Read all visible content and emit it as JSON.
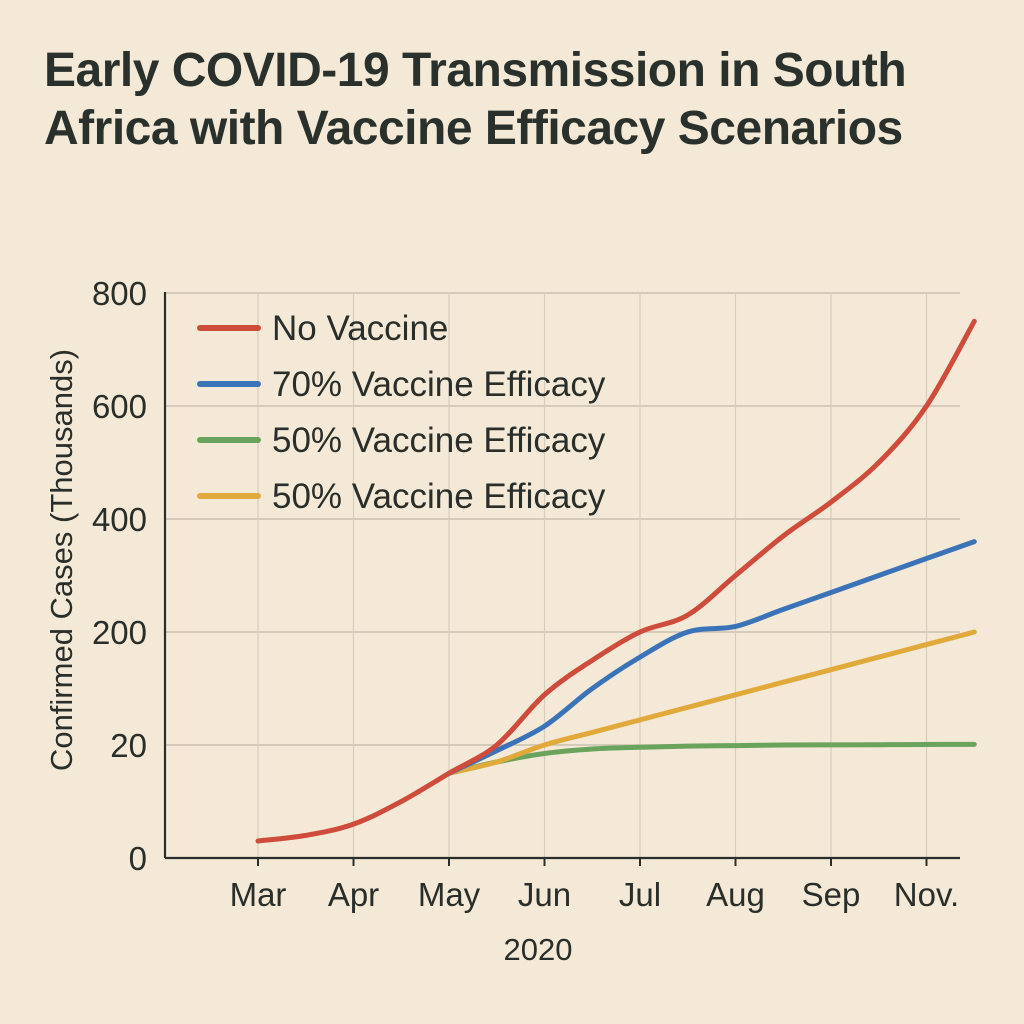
{
  "chart_data": {
    "type": "line",
    "title": "Early COVID-19 Transmission in South Africa with Vaccine Efficacy Scenarios",
    "xlabel": "2020",
    "ylabel": "Confirmed Cases (Thousands)",
    "categories": [
      "Mar",
      "Apr",
      "May",
      "Jun",
      "Jul",
      "Aug",
      "Sep",
      "Nov."
    ],
    "y_ticks": [
      "0",
      "20",
      "200",
      "400",
      "600",
      "800"
    ],
    "y_scale": "irregular (tick labels 0, 20, 200, 400, 600, 800 at equal spacing)",
    "grid": true,
    "legend_position": "top-left",
    "series": [
      {
        "name": "No Vaccine",
        "color": "#cf4b3b",
        "x": [
          2.0,
          2.5,
          3.0,
          3.5,
          4.0,
          4.5,
          5.0,
          5.5,
          6.0,
          6.5,
          7.0,
          7.5,
          8.0,
          8.5,
          9.0,
          9.5
        ],
        "y": [
          3,
          4,
          6,
          10,
          15,
          20,
          100,
          155,
          200,
          230,
          300,
          370,
          430,
          500,
          600,
          750
        ]
      },
      {
        "name": "70% Vaccine Efficacy",
        "color": "#3b73b8",
        "x": [
          4.0,
          4.5,
          5.0,
          5.5,
          6.0,
          6.5,
          7.0,
          7.5,
          8.0,
          8.5,
          9.0,
          9.5
        ],
        "y": [
          15,
          19,
          50,
          110,
          160,
          200,
          210,
          240,
          270,
          300,
          330,
          360
        ]
      },
      {
        "name": "50% Vaccine Efficacy",
        "color": "#6aa35c",
        "x": [
          4.0,
          4.5,
          5.0,
          5.5,
          6.0,
          6.5,
          7.0,
          7.5,
          8.0,
          8.5,
          9.0,
          9.5
        ],
        "y": [
          15,
          17,
          18.5,
          19.3,
          19.6,
          19.8,
          19.9,
          20.0,
          20.2,
          20.5,
          20.8,
          21
        ]
      },
      {
        "name": "50% Vaccine Efficacy",
        "color": "#e0a93a",
        "x": [
          4.0,
          4.5,
          5.0,
          5.5,
          6.0,
          6.5,
          7.0,
          7.5,
          8.0,
          8.5,
          9.0,
          9.5
        ],
        "y": [
          15,
          17,
          20,
          40,
          60,
          80,
          100,
          120,
          140,
          160,
          180,
          200
        ]
      }
    ]
  }
}
